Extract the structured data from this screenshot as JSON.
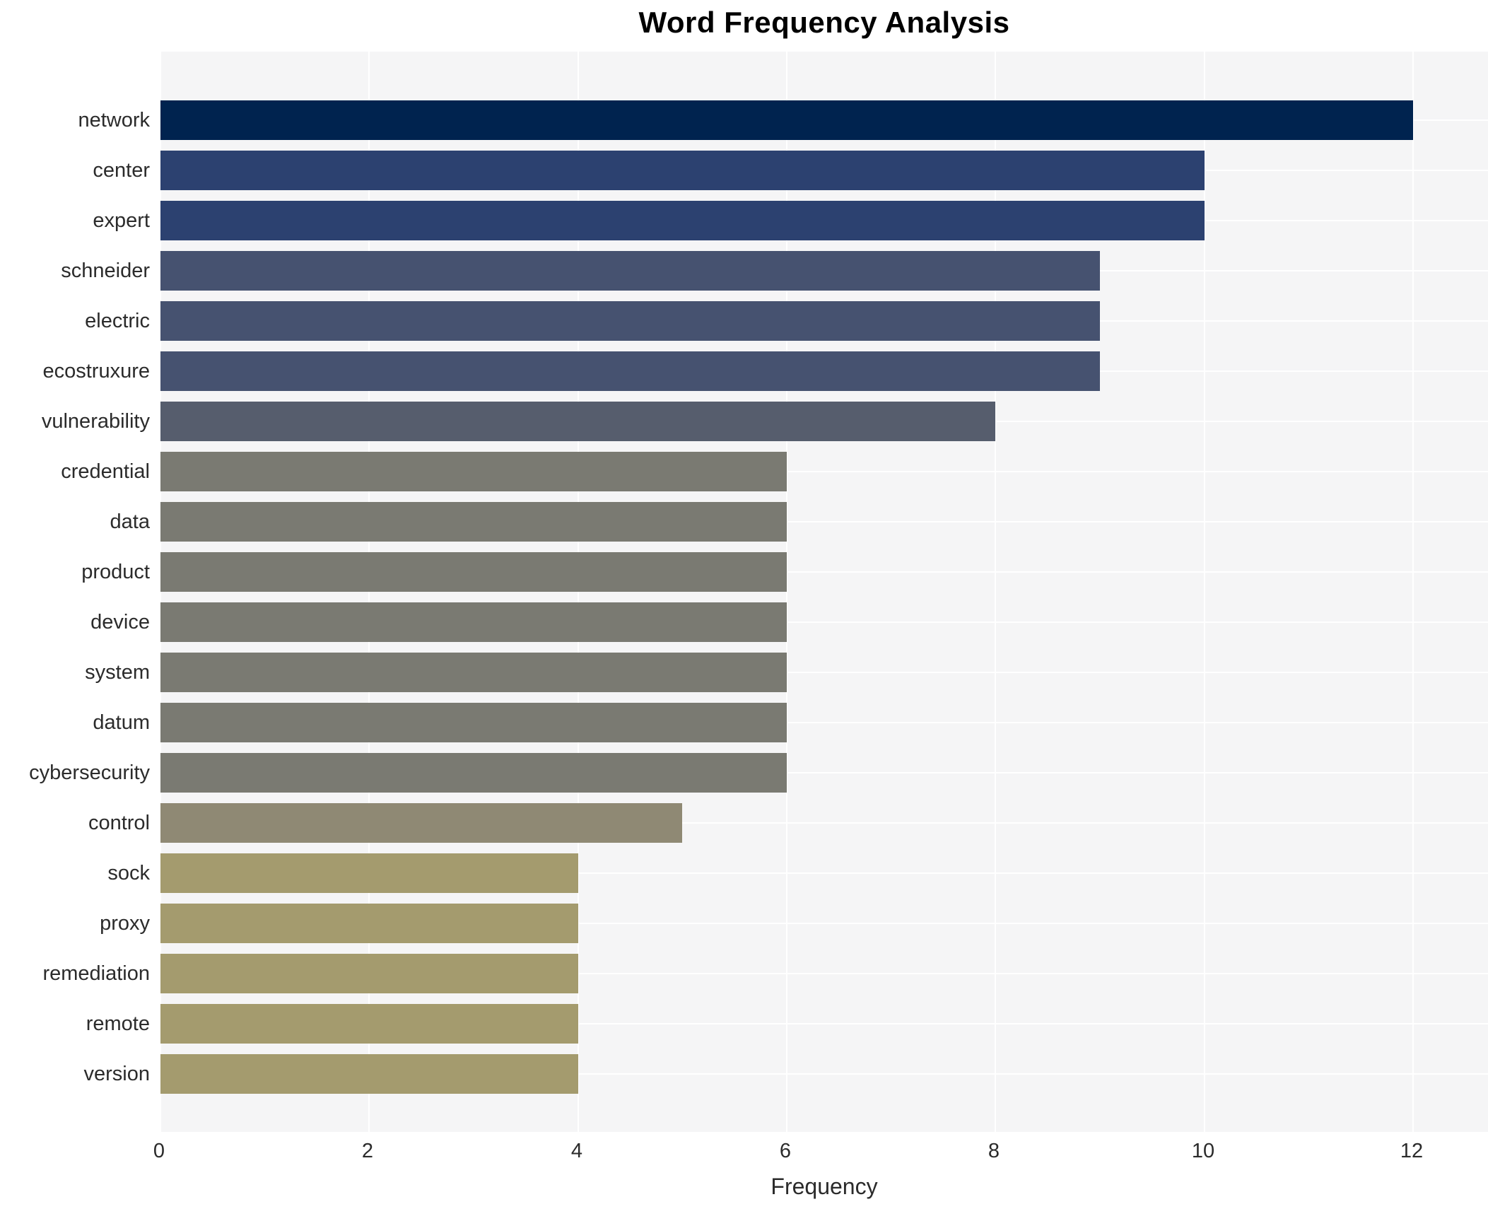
{
  "chart_data": {
    "type": "bar",
    "orientation": "horizontal",
    "title": "Word Frequency Analysis",
    "xlabel": "Frequency",
    "ylabel": "",
    "categories": [
      "network",
      "center",
      "expert",
      "schneider",
      "electric",
      "ecostruxure",
      "vulnerability",
      "credential",
      "data",
      "product",
      "device",
      "system",
      "datum",
      "cybersecurity",
      "control",
      "sock",
      "proxy",
      "remediation",
      "remote",
      "version"
    ],
    "values": [
      12,
      10,
      10,
      9,
      9,
      9,
      8,
      6,
      6,
      6,
      6,
      6,
      6,
      6,
      5,
      4,
      4,
      4,
      4,
      4
    ],
    "bar_colors": [
      "#00234f",
      "#2c4170",
      "#2c4170",
      "#465270",
      "#465270",
      "#465270",
      "#565d6d",
      "#7a7a72",
      "#7a7a72",
      "#7a7a72",
      "#7a7a72",
      "#7a7a72",
      "#7a7a72",
      "#7a7a72",
      "#8f8974",
      "#a49b6e",
      "#a49b6e",
      "#a49b6e",
      "#a49b6e",
      "#a49b6e"
    ],
    "xticks": [
      0,
      2,
      4,
      6,
      8,
      10,
      12
    ],
    "xlim": [
      0,
      12.72
    ],
    "grid": "both-white-lines",
    "plot_background": "#f5f5f6",
    "gridline_color": "#ffffff",
    "legend": "none"
  }
}
